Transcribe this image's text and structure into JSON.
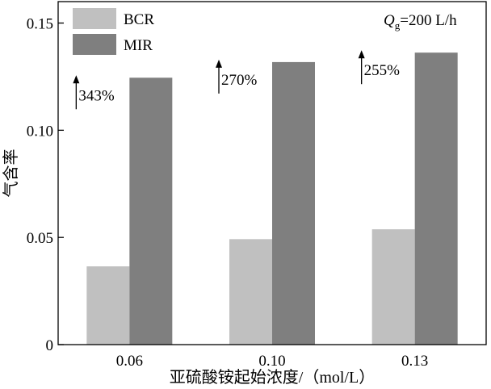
{
  "chart_data": {
    "type": "bar",
    "xlabel": "亚硫酸铵起始浓度/（mol/L）",
    "ylabel": "气含率",
    "categories": [
      "0.06",
      "0.10",
      "0.13"
    ],
    "series": [
      {
        "name": "BCR",
        "values": [
          0.0365,
          0.0492,
          0.0538
        ],
        "color": "#c0c0c0"
      },
      {
        "name": "MIR",
        "values": [
          0.1245,
          0.1318,
          0.1362
        ],
        "color": "#7f7f7f"
      }
    ],
    "ylim": [
      0,
      0.16
    ],
    "yticks": [
      0,
      0.05,
      0.1,
      0.15
    ],
    "ytick_labels": [
      "0",
      "0.05",
      "0.10",
      "0.15"
    ],
    "grid": false,
    "legend_position": "top-left",
    "condition": {
      "symbol": "Q",
      "subscript": "g",
      "value": "=200 L/h"
    },
    "annotations": [
      {
        "category_index": 0,
        "arrow": "↑",
        "text": "343%"
      },
      {
        "category_index": 1,
        "arrow": "↑",
        "text": "270%"
      },
      {
        "category_index": 2,
        "arrow": "↑",
        "text": "255%"
      }
    ]
  }
}
